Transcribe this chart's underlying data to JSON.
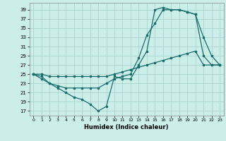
{
  "title": "",
  "xlabel": "Humidex (Indice chaleur)",
  "ylabel": "",
  "bg_color": "#cceee8",
  "grid_color": "#aad4ce",
  "line_color": "#1a6e6e",
  "xlim": [
    -0.5,
    23.5
  ],
  "ylim": [
    16,
    40.5
  ],
  "yticks": [
    17,
    19,
    21,
    23,
    25,
    27,
    29,
    31,
    33,
    35,
    37,
    39
  ],
  "xticks": [
    0,
    1,
    2,
    3,
    4,
    5,
    6,
    7,
    8,
    9,
    10,
    11,
    12,
    13,
    14,
    15,
    16,
    17,
    18,
    19,
    20,
    21,
    22,
    23
  ],
  "line1_x": [
    0,
    1,
    2,
    3,
    4,
    5,
    6,
    7,
    8,
    9,
    10,
    11,
    12,
    13,
    14,
    15,
    16,
    17,
    18,
    19,
    20,
    21,
    22,
    23
  ],
  "line1_y": [
    25,
    24,
    23,
    22,
    21,
    20,
    19.5,
    18.5,
    17,
    18,
    24.5,
    24,
    24,
    27,
    30,
    39,
    39.5,
    39,
    39,
    38.5,
    38,
    33,
    29,
    27
  ],
  "line2_x": [
    0,
    1,
    2,
    3,
    4,
    5,
    6,
    7,
    8,
    9,
    10,
    11,
    12,
    13,
    14,
    15,
    16,
    17,
    18,
    19,
    20,
    21,
    22,
    23
  ],
  "line2_y": [
    25,
    24.5,
    23,
    22.5,
    22,
    22,
    22,
    22,
    22,
    23,
    24,
    24.5,
    25,
    28.5,
    33.5,
    36,
    39,
    39,
    39,
    38.5,
    38,
    29,
    27,
    27
  ],
  "line3_x": [
    0,
    1,
    2,
    3,
    4,
    5,
    6,
    7,
    8,
    9,
    10,
    11,
    12,
    13,
    14,
    15,
    16,
    17,
    18,
    19,
    20,
    21,
    22,
    23
  ],
  "line3_y": [
    25,
    25,
    24.5,
    24.5,
    24.5,
    24.5,
    24.5,
    24.5,
    24.5,
    24.5,
    25,
    25.5,
    26,
    26.5,
    27,
    27.5,
    28,
    28.5,
    29,
    29.5,
    30,
    27,
    27,
    27
  ]
}
